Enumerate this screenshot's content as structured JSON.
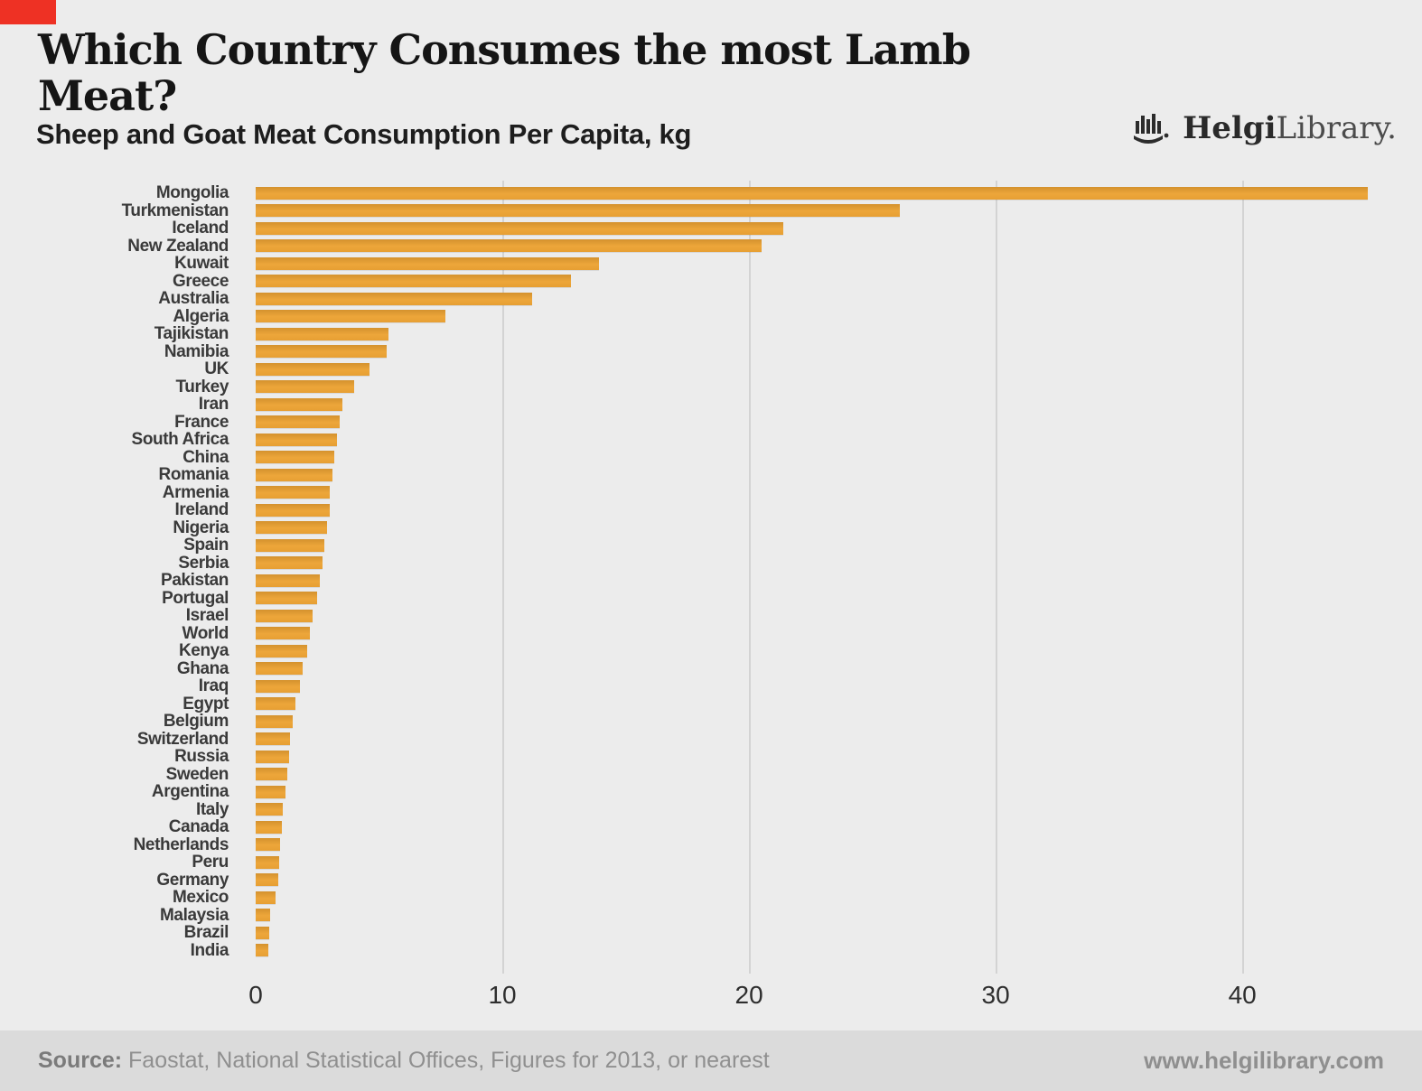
{
  "header": {
    "title": "Which Country Consumes the most Lamb Meat?",
    "subtitle": "Sheep and Goat Meat Consumption Per Capita, kg",
    "logo_bold": "Helgi",
    "logo_light": "Library."
  },
  "chart_data": {
    "type": "bar",
    "orientation": "horizontal",
    "title": "Which Country Consumes the most Lamb Meat?",
    "subtitle": "Sheep and Goat Meat Consumption Per Capita, kg",
    "unit": "kg per capita",
    "xlim": [
      0,
      46
    ],
    "xticks": [
      0,
      10,
      20,
      30,
      40
    ],
    "grid": "vertical",
    "legend": "none",
    "bar_color": "#E9A238",
    "categories": [
      "Mongolia",
      "Turkmenistan",
      "Iceland",
      "New Zealand",
      "Kuwait",
      "Greece",
      "Australia",
      "Algeria",
      "Tajikistan",
      "Namibia",
      "UK",
      "Turkey",
      "Iran",
      "France",
      "South Africa",
      "China",
      "Romania",
      "Armenia",
      "Ireland",
      "Nigeria",
      "Spain",
      "Serbia",
      "Pakistan",
      "Portugal",
      "Israel",
      "World",
      "Kenya",
      "Ghana",
      "Iraq",
      "Egypt",
      "Belgium",
      "Switzerland",
      "Russia",
      "Sweden",
      "Argentina",
      "Italy",
      "Canada",
      "Netherlands",
      "Peru",
      "Germany",
      "Mexico",
      "Malaysia",
      "Brazil",
      "India"
    ],
    "values": [
      45.1,
      26.1,
      21.4,
      20.5,
      13.9,
      12.8,
      11.2,
      7.7,
      5.4,
      5.3,
      4.6,
      4.0,
      3.5,
      3.4,
      3.3,
      3.2,
      3.1,
      3.0,
      3.0,
      2.9,
      2.8,
      2.7,
      2.6,
      2.5,
      2.3,
      2.2,
      2.1,
      1.9,
      1.8,
      1.6,
      1.5,
      1.4,
      1.35,
      1.3,
      1.2,
      1.1,
      1.05,
      1.0,
      0.95,
      0.9,
      0.8,
      0.6,
      0.55,
      0.5
    ]
  },
  "footer": {
    "source_label": "Source:",
    "source_text": " Faostat, National Statistical Offices, Figures for 2013, or nearest",
    "website": "www.helgilibrary.com"
  }
}
